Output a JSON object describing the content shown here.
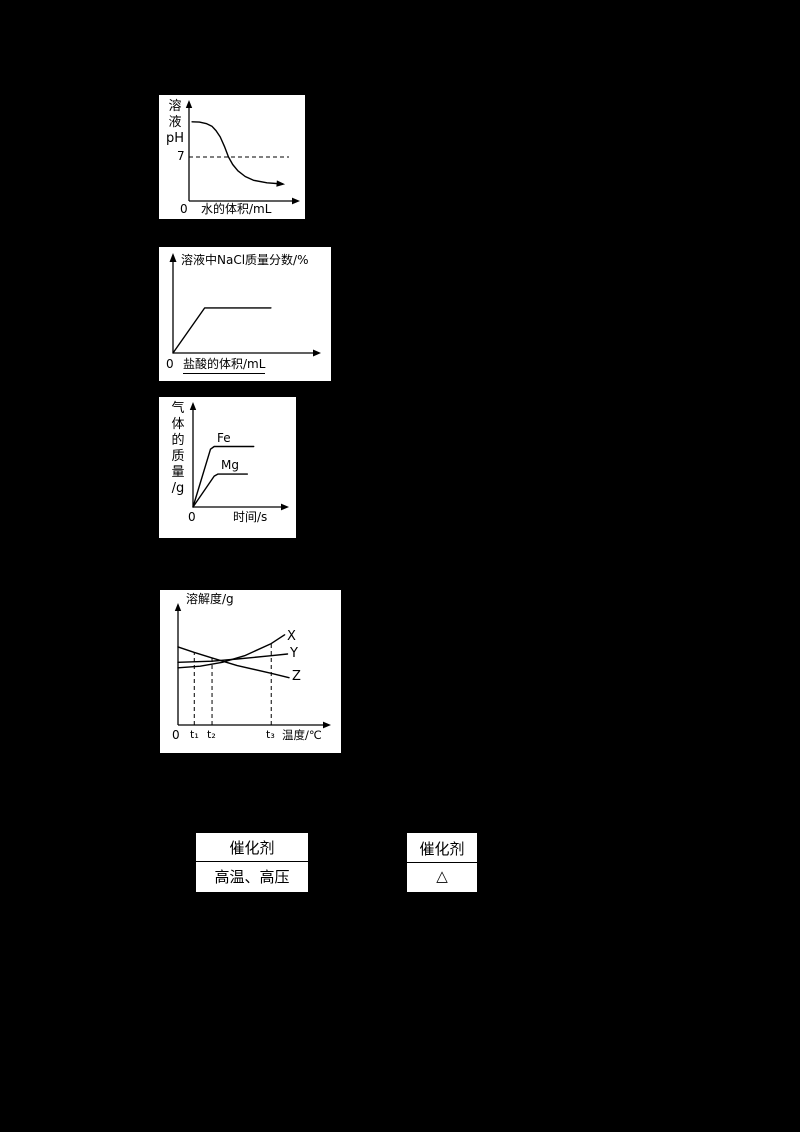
{
  "page": {
    "background": "#000000",
    "panel_background": "#ffffff",
    "ink": "#000000"
  },
  "chart_data": [
    {
      "id": "ph-vs-water",
      "type": "line",
      "title": "",
      "ylabel": "溶液pH",
      "ylabel_display": "溶\n液\npH",
      "xlabel": "水的体积/mL",
      "origin_label": "0",
      "ylim": [
        0,
        14
      ],
      "ref_y": {
        "label": "7",
        "value": 7,
        "style": "dashed"
      },
      "series": [
        {
          "name": "溶液pH",
          "end_arrow": true,
          "x": [
            0.3,
            1.0,
            1.7,
            2.2,
            2.6,
            3.0,
            3.4,
            3.8,
            4.2,
            4.7,
            5.4,
            6.2,
            7.5,
            9.0
          ],
          "y": [
            12.6,
            12.55,
            12.3,
            11.9,
            11.2,
            10.2,
            8.7,
            7.0,
            5.8,
            4.8,
            3.9,
            3.3,
            2.9,
            2.7
          ]
        }
      ]
    },
    {
      "id": "nacl-mass-fraction-vs-hcl",
      "type": "line",
      "ylabel": "溶液中NaCl质量分数/%",
      "xlabel": "盐酸的体积/mL",
      "origin_label": "0",
      "series": [
        {
          "name": "NaCl质量分数",
          "x": [
            0,
            2.2,
            6.8
          ],
          "y": [
            0,
            4.2,
            4.2
          ]
        }
      ]
    },
    {
      "id": "gas-mass-vs-time",
      "type": "line",
      "ylabel": "气体的质量/g",
      "ylabel_display": "气\n体\n的\n质\n量\n/g",
      "xlabel": "时间/s",
      "origin_label": "0",
      "series": [
        {
          "name": "Fe",
          "x": [
            0,
            1.9,
            2.3,
            6.6
          ],
          "y": [
            0,
            0.88,
            0.92,
            0.92
          ]
        },
        {
          "name": "Mg",
          "x": [
            0,
            2.3,
            2.7,
            5.9
          ],
          "y": [
            0,
            0.47,
            0.5,
            0.5
          ]
        }
      ]
    },
    {
      "id": "solubility-vs-temperature",
      "type": "line",
      "ylabel": "溶解度/g",
      "xlabel": "温度/℃",
      "origin_label": "0",
      "x_ticks": [
        "t₁",
        "t₂",
        "t₃"
      ],
      "dashed_x": [
        {
          "tick": "t₁",
          "x": 1.1,
          "to_y": 6.6
        },
        {
          "tick": "t₂",
          "x": 2.3,
          "to_y": 6.1
        },
        {
          "tick": "t₃",
          "x": 6.3,
          "to_y": 7.4
        }
      ],
      "series": [
        {
          "name": "X",
          "x": [
            0,
            1.5,
            3.0,
            4.5,
            6.3,
            7.2
          ],
          "y": [
            5.2,
            5.35,
            5.7,
            6.3,
            7.4,
            8.2
          ]
        },
        {
          "name": "Y",
          "x": [
            0,
            2.3,
            4.0,
            6.3,
            7.4
          ],
          "y": [
            5.7,
            5.8,
            6.0,
            6.3,
            6.45
          ]
        },
        {
          "name": "Z",
          "x": [
            0,
            1.1,
            2.3,
            4.0,
            6.3,
            7.5
          ],
          "y": [
            7.1,
            6.6,
            6.1,
            5.4,
            4.7,
            4.3
          ]
        }
      ]
    }
  ],
  "conditions": [
    {
      "top": "催化剂",
      "bottom": "高温、高压"
    },
    {
      "top": "催化剂",
      "bottom": "△"
    }
  ]
}
